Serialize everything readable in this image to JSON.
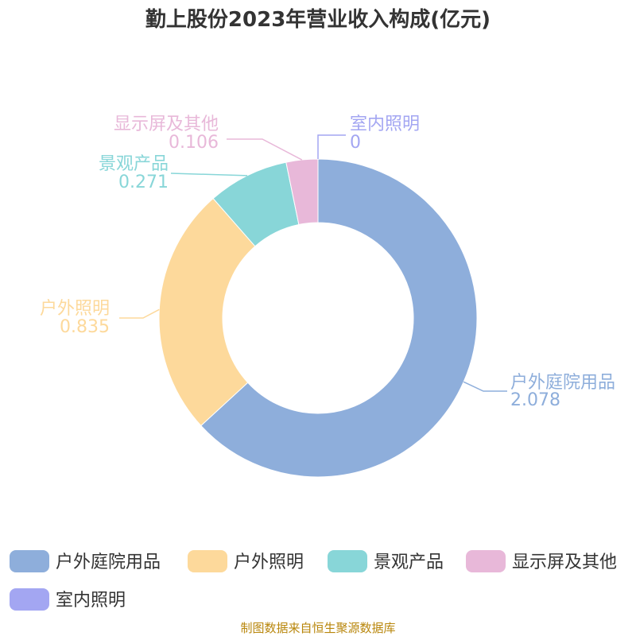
{
  "chart_data": {
    "type": "pie",
    "variant": "donut",
    "title": "勤上股份2023年营业收入构成(亿元)",
    "unit": "亿元",
    "slices": [
      {
        "label": "户外庭院用品",
        "value": 2.078,
        "value_text": "2.078",
        "color": "#8eaedb"
      },
      {
        "label": "户外照明",
        "value": 0.835,
        "value_text": "0.835",
        "color": "#fdd99b"
      },
      {
        "label": "景观产品",
        "value": 0.271,
        "value_text": "0.271",
        "color": "#88d6d8"
      },
      {
        "label": "显示屏及其他",
        "value": 0.106,
        "value_text": "0.106",
        "color": "#e8b8d9"
      },
      {
        "label": "室内照明",
        "value": 0,
        "value_text": "0",
        "color": "#a3a6f2"
      }
    ],
    "legend": {
      "position": "bottom",
      "items": [
        "户外庭院用品",
        "户外照明",
        "景观产品",
        "显示屏及其他",
        "室内照明"
      ]
    }
  },
  "source": "制图数据来自恒生聚源数据库"
}
